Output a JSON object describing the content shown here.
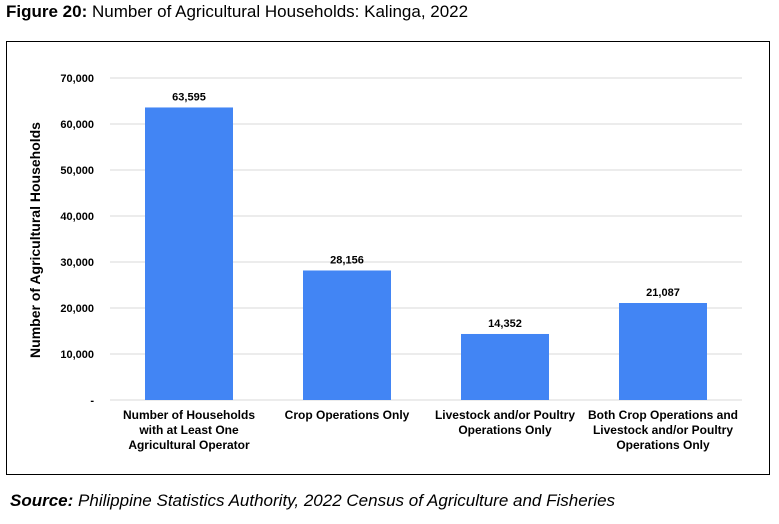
{
  "figure": {
    "label": "Figure 20:",
    "title": "Number of Agricultural Households: Kalinga, 2022"
  },
  "source": {
    "label": "Source:",
    "text": "Philippine Statistics Authority, 2022 Census of Agriculture and Fisheries"
  },
  "colors": {
    "bar": "#4285F4",
    "grid": "#d9d9d9"
  },
  "chart_data": {
    "type": "bar",
    "title": "",
    "ylabel": "Number of Agricultural Households",
    "xlabel": "",
    "categories": [
      "Number of Households with at Least One Agricultural Operator",
      "Crop Operations Only",
      "Livestock and/or Poultry Operations Only",
      "Both Crop Operations and Livestock and/or Poultry Operations Only"
    ],
    "category_lines": [
      "Number of Households\nwith at Least One\nAgricultural Operator",
      "Crop Operations Only",
      "Livestock and/or Poultry\nOperations Only",
      "Both Crop Operations and\nLivestock and/or Poultry\nOperations Only"
    ],
    "values": [
      63595,
      28156,
      14352,
      21087
    ],
    "data_labels": [
      "63,595",
      "28,156",
      "14,352",
      "21,087"
    ],
    "ylim": [
      0,
      70000
    ],
    "yticks": [
      0,
      10000,
      20000,
      30000,
      40000,
      50000,
      60000,
      70000
    ],
    "ytick_labels": [
      "-",
      "10,000",
      "20,000",
      "30,000",
      "40,000",
      "50,000",
      "60,000",
      "70,000"
    ],
    "grid": true,
    "legend": "none"
  }
}
